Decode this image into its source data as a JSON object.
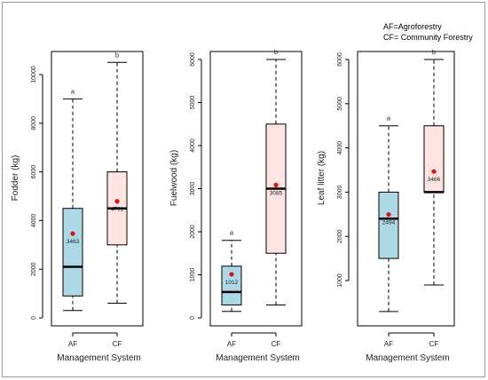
{
  "note": {
    "line1": "AF=Agroforestry",
    "line2": "CF= Community Forestry"
  },
  "colors": {
    "AF_fill": "#add8e6",
    "CF_fill": "#ffe4e1",
    "mean_point": "#dd1111",
    "median_line": "#000000"
  },
  "chart_data": [
    {
      "type": "box",
      "xlabel": "Management System",
      "ylabel": "Fodder (kg)",
      "categories": [
        "AF",
        "CF"
      ],
      "ylim": [
        0,
        10500
      ],
      "yticks": [
        0,
        2000,
        4000,
        6000,
        8000,
        10000
      ],
      "boxes": [
        {
          "category": "AF",
          "min": 300,
          "q1": 900,
          "median": 2100,
          "q3": 4500,
          "max": 9000,
          "mean": 3463,
          "mean_label": "3463",
          "group_letter": "a"
        },
        {
          "category": "CF",
          "min": 600,
          "q1": 3000,
          "median": 4500,
          "q3": 6000,
          "max": 10500,
          "mean": 4791,
          "mean_label": "4791",
          "group_letter": "b"
        }
      ]
    },
    {
      "type": "box",
      "xlabel": "Management System",
      "ylabel": "Fuelwood (kg)",
      "categories": [
        "AF",
        "CF"
      ],
      "ylim": [
        0,
        6000
      ],
      "yticks": [
        0,
        1000,
        2000,
        3000,
        4000,
        5000,
        6000
      ],
      "boxes": [
        {
          "category": "AF",
          "min": 150,
          "q1": 300,
          "median": 600,
          "q3": 1200,
          "max": 1800,
          "mean": 1012,
          "mean_label": "1012",
          "group_letter": "a"
        },
        {
          "category": "CF",
          "min": 300,
          "q1": 1500,
          "median": 3000,
          "q3": 4500,
          "max": 6000,
          "mean": 3085,
          "mean_label": "3085",
          "group_letter": "b"
        }
      ]
    },
    {
      "type": "box",
      "xlabel": "Management System",
      "ylabel": "Leaf litter (kg)",
      "categories": [
        "AF",
        "CF"
      ],
      "ylim": [
        300,
        6000
      ],
      "yticks": [
        1000,
        2000,
        3000,
        4000,
        5000,
        6000
      ],
      "boxes": [
        {
          "category": "AF",
          "min": 300,
          "q1": 1500,
          "median": 2400,
          "q3": 3000,
          "max": 4500,
          "mean": 2494,
          "mean_label": "2494",
          "group_letter": "a"
        },
        {
          "category": "CF",
          "min": 900,
          "q1": 3000,
          "median": 3000,
          "q3": 4500,
          "max": 6000,
          "mean": 3466,
          "mean_label": "3466",
          "group_letter": "b"
        }
      ]
    }
  ]
}
